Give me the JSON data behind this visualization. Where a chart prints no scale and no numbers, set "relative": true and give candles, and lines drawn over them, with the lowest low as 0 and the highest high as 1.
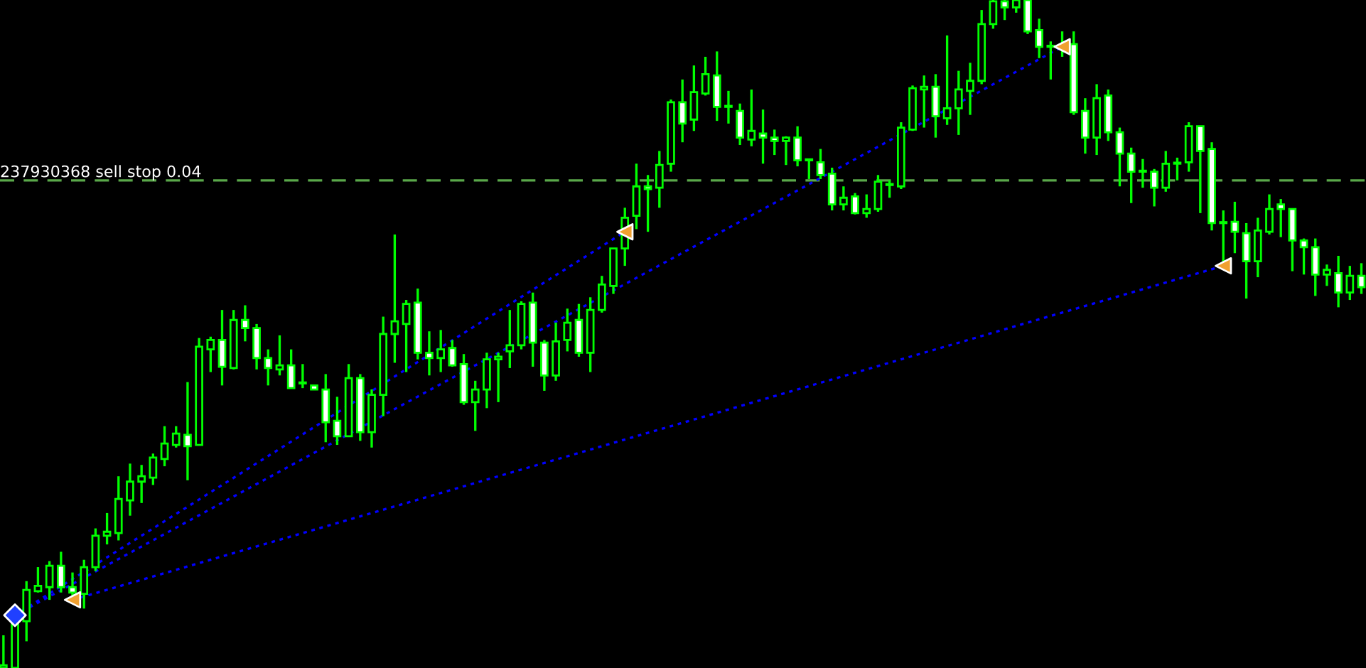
{
  "chart_data": {
    "type": "candlestick",
    "relative": true,
    "categories": [
      null,
      null,
      null,
      null,
      null,
      null,
      null,
      null,
      null,
      null,
      null,
      null,
      null,
      null,
      null,
      null,
      null,
      null,
      null,
      null,
      null,
      null,
      null,
      null,
      null,
      null,
      null,
      null,
      null,
      null,
      null,
      null,
      null,
      null,
      null,
      null,
      null,
      null,
      null,
      null,
      null,
      null,
      null,
      null,
      null,
      null,
      null,
      null,
      null,
      null,
      null,
      null,
      null,
      null,
      null,
      null,
      null,
      null,
      null,
      null,
      null,
      null,
      null,
      null,
      null,
      null,
      null,
      null,
      null,
      null,
      null,
      null,
      null,
      null,
      null,
      null,
      null,
      null,
      null,
      null,
      null,
      null,
      null,
      null,
      null,
      null,
      null,
      null,
      null,
      null,
      null,
      null,
      null,
      null,
      null,
      null,
      null,
      null,
      null,
      null,
      null,
      null,
      null,
      null,
      null,
      null,
      null,
      null,
      null,
      null,
      null,
      null,
      null,
      null,
      null,
      null,
      null,
      null,
      null
    ],
    "ohlc": [
      [
        0,
        0.049,
        0,
        0.004
      ],
      [
        0,
        0.072,
        0,
        0.072
      ],
      [
        0.07,
        0.13,
        0.04,
        0.117
      ],
      [
        0.115,
        0.151,
        0.113,
        0.123
      ],
      [
        0.121,
        0.16,
        0.102,
        0.153
      ],
      [
        0.153,
        0.174,
        0.113,
        0.121
      ],
      [
        0.121,
        0.143,
        0.106,
        0.113
      ],
      [
        0.111,
        0.162,
        0.089,
        0.151
      ],
      [
        0.151,
        0.209,
        0.145,
        0.198
      ],
      [
        0.198,
        0.232,
        0.185,
        0.204
      ],
      [
        0.202,
        0.287,
        0.191,
        0.253
      ],
      [
        0.251,
        0.306,
        0.228,
        0.279
      ],
      [
        0.279,
        0.304,
        0.247,
        0.287
      ],
      [
        0.285,
        0.321,
        0.274,
        0.315
      ],
      [
        0.313,
        0.362,
        0.302,
        0.336
      ],
      [
        0.334,
        0.362,
        0.33,
        0.351
      ],
      [
        0.349,
        0.428,
        0.281,
        0.332
      ],
      [
        0.334,
        0.494,
        0.334,
        0.481
      ],
      [
        0.477,
        0.496,
        0.443,
        0.491
      ],
      [
        0.491,
        0.536,
        0.423,
        0.451
      ],
      [
        0.449,
        0.536,
        0.447,
        0.521
      ],
      [
        0.521,
        0.543,
        0.489,
        0.509
      ],
      [
        0.509,
        0.515,
        0.447,
        0.464
      ],
      [
        0.464,
        0.477,
        0.423,
        0.449
      ],
      [
        0.447,
        0.498,
        0.438,
        0.453
      ],
      [
        0.453,
        0.477,
        0.419,
        0.419
      ],
      [
        0.426,
        0.455,
        0.419,
        0.426
      ],
      [
        0.423,
        0.423,
        0.417,
        0.417
      ],
      [
        0.417,
        0.44,
        0.338,
        0.368
      ],
      [
        0.37,
        0.406,
        0.334,
        0.347
      ],
      [
        0.347,
        0.455,
        0.347,
        0.434
      ],
      [
        0.434,
        0.44,
        0.34,
        0.353
      ],
      [
        0.353,
        0.417,
        0.33,
        0.409
      ],
      [
        0.409,
        0.526,
        0.377,
        0.5
      ],
      [
        0.5,
        0.649,
        0.457,
        0.519
      ],
      [
        0.515,
        0.551,
        0.443,
        0.545
      ],
      [
        0.547,
        0.568,
        0.462,
        0.472
      ],
      [
        0.472,
        0.504,
        0.438,
        0.464
      ],
      [
        0.464,
        0.506,
        0.443,
        0.477
      ],
      [
        0.479,
        0.491,
        0.451,
        0.453
      ],
      [
        0.455,
        0.47,
        0.394,
        0.398
      ],
      [
        0.398,
        0.43,
        0.355,
        0.417
      ],
      [
        0.417,
        0.472,
        0.389,
        0.462
      ],
      [
        0.462,
        0.472,
        0.398,
        0.466
      ],
      [
        0.474,
        0.536,
        0.449,
        0.483
      ],
      [
        0.483,
        0.549,
        0.477,
        0.545
      ],
      [
        0.547,
        0.562,
        0.451,
        0.487
      ],
      [
        0.487,
        0.491,
        0.415,
        0.438
      ],
      [
        0.438,
        0.517,
        0.43,
        0.489
      ],
      [
        0.491,
        0.538,
        0.474,
        0.517
      ],
      [
        0.521,
        0.545,
        0.466,
        0.472
      ],
      [
        0.472,
        0.555,
        0.443,
        0.536
      ],
      [
        0.536,
        0.587,
        0.532,
        0.574
      ],
      [
        0.572,
        0.628,
        0.56,
        0.628
      ],
      [
        0.628,
        0.689,
        0.602,
        0.674
      ],
      [
        0.677,
        0.755,
        0.657,
        0.721
      ],
      [
        0.721,
        0.738,
        0.653,
        0.717
      ],
      [
        0.719,
        0.774,
        0.689,
        0.753
      ],
      [
        0.755,
        0.851,
        0.743,
        0.847
      ],
      [
        0.847,
        0.881,
        0.787,
        0.815
      ],
      [
        0.821,
        0.902,
        0.804,
        0.862
      ],
      [
        0.86,
        0.915,
        0.857,
        0.889
      ],
      [
        0.887,
        0.923,
        0.819,
        0.84
      ],
      [
        0.84,
        0.864,
        0.815,
        0.84
      ],
      [
        0.834,
        0.845,
        0.783,
        0.794
      ],
      [
        0.791,
        0.866,
        0.781,
        0.804
      ],
      [
        0.8,
        0.836,
        0.755,
        0.794
      ],
      [
        0.794,
        0.806,
        0.768,
        0.789
      ],
      [
        0.789,
        0.796,
        0.753,
        0.794
      ],
      [
        0.794,
        0.811,
        0.751,
        0.76
      ],
      [
        0.76,
        0.76,
        0.732,
        0.76
      ],
      [
        0.757,
        0.777,
        0.732,
        0.738
      ],
      [
        0.74,
        0.749,
        0.685,
        0.694
      ],
      [
        0.694,
        0.721,
        0.685,
        0.704
      ],
      [
        0.706,
        0.711,
        0.679,
        0.681
      ],
      [
        0.681,
        0.709,
        0.674,
        0.687
      ],
      [
        0.687,
        0.738,
        0.683,
        0.728
      ],
      [
        0.723,
        0.73,
        0.704,
        0.723
      ],
      [
        0.721,
        0.817,
        0.717,
        0.809
      ],
      [
        0.806,
        0.872,
        0.804,
        0.868
      ],
      [
        0.866,
        0.887,
        0.809,
        0.87
      ],
      [
        0.87,
        0.889,
        0.794,
        0.826
      ],
      [
        0.823,
        0.947,
        0.813,
        0.838
      ],
      [
        0.838,
        0.894,
        0.798,
        0.866
      ],
      [
        0.864,
        0.906,
        0.828,
        0.879
      ],
      [
        0.879,
        0.985,
        0.874,
        0.964
      ],
      [
        0.964,
        1,
        0.957,
        0.998
      ],
      [
        0.998,
        1,
        0.97,
        0.989
      ],
      [
        0.989,
        1,
        0.981,
        1
      ],
      [
        1,
        1,
        0.949,
        0.953
      ],
      [
        0.955,
        0.972,
        0.913,
        0.93
      ],
      [
        0.93,
        0.938,
        0.881,
        0.93
      ],
      [
        0.932,
        0.953,
        0.915,
        0.928
      ],
      [
        0.934,
        0.953,
        0.828,
        0.832
      ],
      [
        0.834,
        0.853,
        0.77,
        0.794
      ],
      [
        0.794,
        0.874,
        0.768,
        0.853
      ],
      [
        0.857,
        0.866,
        0.789,
        0.802
      ],
      [
        0.802,
        0.809,
        0.721,
        0.77
      ],
      [
        0.77,
        0.779,
        0.696,
        0.743
      ],
      [
        0.743,
        0.762,
        0.719,
        0.743
      ],
      [
        0.743,
        0.747,
        0.691,
        0.719
      ],
      [
        0.719,
        0.774,
        0.713,
        0.755
      ],
      [
        0.755,
        0.764,
        0.73,
        0.755
      ],
      [
        0.757,
        0.817,
        0.743,
        0.811
      ],
      [
        0.811,
        0.811,
        0.681,
        0.774
      ],
      [
        0.777,
        0.787,
        0.655,
        0.666
      ],
      [
        0.666,
        0.685,
        0.602,
        0.666
      ],
      [
        0.668,
        0.698,
        0.621,
        0.653
      ],
      [
        0.651,
        0.666,
        0.553,
        0.609
      ],
      [
        0.609,
        0.674,
        0.585,
        0.655
      ],
      [
        0.653,
        0.709,
        0.649,
        0.687
      ],
      [
        0.694,
        0.702,
        0.645,
        0.687
      ],
      [
        0.687,
        0.687,
        0.594,
        0.64
      ],
      [
        0.64,
        0.643,
        0.589,
        0.63
      ],
      [
        0.63,
        0.643,
        0.557,
        0.589
      ],
      [
        0.589,
        0.604,
        0.572,
        0.596
      ],
      [
        0.591,
        0.617,
        0.54,
        0.562
      ],
      [
        0.562,
        0.602,
        0.551,
        0.587
      ],
      [
        0.587,
        0.606,
        0.56,
        0.57
      ]
    ],
    "series": [
      {
        "type": "line",
        "color": "#0000ff",
        "line_style": "dotted",
        "values": [
          null,
          0.079,
          null,
          null,
          null,
          null,
          null,
          null,
          null,
          null,
          null,
          null,
          null,
          null,
          null,
          null,
          null,
          null,
          null,
          null,
          null,
          null,
          null,
          null,
          null,
          null,
          null,
          null,
          null,
          null,
          null,
          null,
          null,
          null,
          null,
          null,
          null,
          null,
          null,
          null,
          null,
          null,
          null,
          null,
          null,
          null,
          null,
          null,
          null,
          null,
          null,
          null,
          null,
          null,
          0.653,
          null,
          null,
          null,
          null,
          null,
          null,
          null,
          null,
          null,
          null,
          null,
          null,
          null,
          null,
          null,
          null,
          null,
          null,
          null,
          null,
          null,
          null,
          null,
          null,
          null,
          null,
          null,
          null,
          null,
          null,
          null,
          null,
          null,
          null,
          null,
          null,
          null,
          null,
          null,
          null,
          null,
          null,
          null,
          null,
          null,
          null,
          null,
          null,
          null,
          null,
          null,
          null,
          null,
          null,
          null,
          null,
          null,
          null,
          null,
          null,
          null,
          null,
          null,
          null
        ]
      },
      {
        "type": "line",
        "color": "#0000ff",
        "line_style": "dotted",
        "values": [
          null,
          0.079,
          null,
          null,
          null,
          null,
          null,
          null,
          null,
          null,
          null,
          null,
          null,
          null,
          null,
          null,
          null,
          null,
          null,
          null,
          null,
          null,
          null,
          null,
          null,
          null,
          null,
          null,
          null,
          null,
          null,
          null,
          null,
          null,
          null,
          null,
          null,
          null,
          null,
          null,
          null,
          null,
          null,
          null,
          null,
          null,
          null,
          null,
          null,
          null,
          null,
          null,
          null,
          null,
          null,
          null,
          null,
          null,
          null,
          null,
          null,
          null,
          null,
          null,
          null,
          null,
          null,
          null,
          null,
          null,
          null,
          null,
          null,
          null,
          null,
          null,
          null,
          null,
          null,
          null,
          null,
          null,
          null,
          null,
          null,
          null,
          null,
          null,
          null,
          null,
          null,
          null,
          0.93,
          null,
          null,
          null,
          null,
          null,
          null,
          null,
          null,
          null,
          null,
          null,
          null,
          null,
          null,
          null,
          null,
          null,
          null,
          null,
          null,
          null,
          null,
          null,
          null,
          null,
          null
        ]
      },
      {
        "type": "line",
        "color": "#0000ff",
        "line_style": "dotted",
        "values": [
          null,
          null,
          null,
          null,
          null,
          null,
          0.102,
          null,
          null,
          null,
          null,
          null,
          null,
          null,
          null,
          null,
          null,
          null,
          null,
          null,
          null,
          null,
          null,
          null,
          null,
          null,
          null,
          null,
          null,
          null,
          null,
          null,
          null,
          null,
          null,
          null,
          null,
          null,
          null,
          null,
          null,
          null,
          null,
          null,
          null,
          null,
          null,
          null,
          null,
          null,
          null,
          null,
          null,
          null,
          null,
          null,
          null,
          null,
          null,
          null,
          null,
          null,
          null,
          null,
          null,
          null,
          null,
          null,
          null,
          null,
          null,
          null,
          null,
          null,
          null,
          null,
          null,
          null,
          null,
          null,
          null,
          null,
          null,
          null,
          null,
          null,
          null,
          null,
          null,
          null,
          null,
          null,
          null,
          null,
          null,
          null,
          null,
          null,
          null,
          null,
          null,
          null,
          null,
          null,
          null,
          null,
          0.602,
          null,
          null,
          null,
          null,
          null,
          null,
          null,
          null,
          null,
          null,
          null,
          null
        ]
      },
      {
        "type": "scatter",
        "color": "#f0a030",
        "marker": "triangle",
        "values": [
          null,
          null,
          null,
          null,
          null,
          null,
          0.102,
          null,
          null,
          null,
          null,
          null,
          null,
          null,
          null,
          null,
          null,
          null,
          null,
          null,
          null,
          null,
          null,
          null,
          null,
          null,
          null,
          null,
          null,
          null,
          null,
          null,
          null,
          null,
          null,
          null,
          null,
          null,
          null,
          null,
          null,
          null,
          null,
          null,
          null,
          null,
          null,
          null,
          null,
          null,
          null,
          null,
          null,
          null,
          0.653,
          null,
          null,
          null,
          null,
          null,
          null,
          null,
          null,
          null,
          null,
          null,
          null,
          null,
          null,
          null,
          null,
          null,
          null,
          null,
          null,
          null,
          null,
          null,
          null,
          null,
          null,
          null,
          null,
          null,
          null,
          null,
          null,
          null,
          null,
          null,
          null,
          null,
          0.93,
          null,
          null,
          null,
          null,
          null,
          null,
          null,
          null,
          null,
          null,
          null,
          null,
          null,
          0.602,
          null,
          null,
          null,
          null,
          null,
          null,
          null,
          null,
          null,
          null,
          null,
          null
        ]
      },
      {
        "type": "scatter",
        "color": "#2040ff",
        "marker": "diamond",
        "values": [
          null,
          0.079,
          null,
          null,
          null,
          null,
          null,
          null,
          null,
          null,
          null,
          null,
          null,
          null,
          null,
          null,
          null,
          null,
          null,
          null,
          null,
          null,
          null,
          null,
          null,
          null,
          null,
          null,
          null,
          null,
          null,
          null,
          null,
          null,
          null,
          null,
          null,
          null,
          null,
          null,
          null,
          null,
          null,
          null,
          null,
          null,
          null,
          null,
          null,
          null,
          null,
          null,
          null,
          null,
          null,
          null,
          null,
          null,
          null,
          null,
          null,
          null,
          null,
          null,
          null,
          null,
          null,
          null,
          null,
          null,
          null,
          null,
          null,
          null,
          null,
          null,
          null,
          null,
          null,
          null,
          null,
          null,
          null,
          null,
          null,
          null,
          null,
          null,
          null,
          null,
          null,
          null,
          null,
          null,
          null,
          null,
          null,
          null,
          null,
          null,
          null,
          null,
          null,
          null,
          null,
          null,
          null,
          null,
          null,
          null,
          null,
          null,
          null,
          null,
          null,
          null,
          null,
          null,
          null
        ]
      }
    ],
    "ref_lines": [
      {
        "axis": "y",
        "value": 0.73,
        "label": "237930368 sell stop 0.04",
        "color": "#5aa84a",
        "line_style": "dashed"
      }
    ]
  }
}
